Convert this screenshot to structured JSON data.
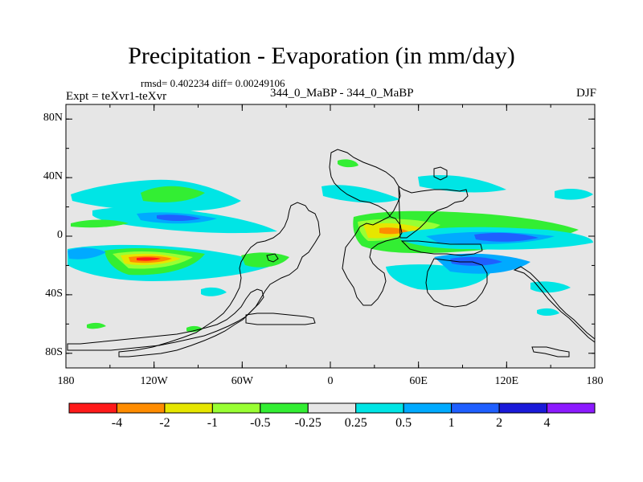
{
  "title": "Precipitation - Evaporation (in mm/day)",
  "stats": "rmsd= 0.402234  diff= 0.00249106",
  "experiment": "Expt = teXvr1-teXvr",
  "cases": "344_0_MaBP - 344_0_MaBP",
  "season": "DJF",
  "y_ticks": [
    {
      "label": "80N",
      "lat": 80
    },
    {
      "label": "40N",
      "lat": 40
    },
    {
      "label": "0",
      "lat": 0
    },
    {
      "label": "40S",
      "lat": -40
    },
    {
      "label": "80S",
      "lat": -80
    }
  ],
  "x_ticks": [
    {
      "label": "180",
      "lon": -180
    },
    {
      "label": "120W",
      "lon": -120
    },
    {
      "label": "60W",
      "lon": -60
    },
    {
      "label": "0",
      "lon": 0
    },
    {
      "label": "60E",
      "lon": 60
    },
    {
      "label": "120E",
      "lon": 120
    },
    {
      "label": "180",
      "lon": 180
    }
  ],
  "colorbar": {
    "colors": [
      "#ff1a1a",
      "#ff8c00",
      "#e6e600",
      "#99ff33",
      "#33ee33",
      "#e6e6e6",
      "#00e5e5",
      "#00aaff",
      "#1f5fff",
      "#1a1ad9",
      "#8c1aff"
    ],
    "labels": [
      "-4",
      "-2",
      "-1",
      "-0.5",
      "-0.25",
      "0.25",
      "0.5",
      "1",
      "2",
      "4"
    ]
  },
  "map": {
    "background": "#e6e6e6",
    "coast_color": "#000000"
  }
}
